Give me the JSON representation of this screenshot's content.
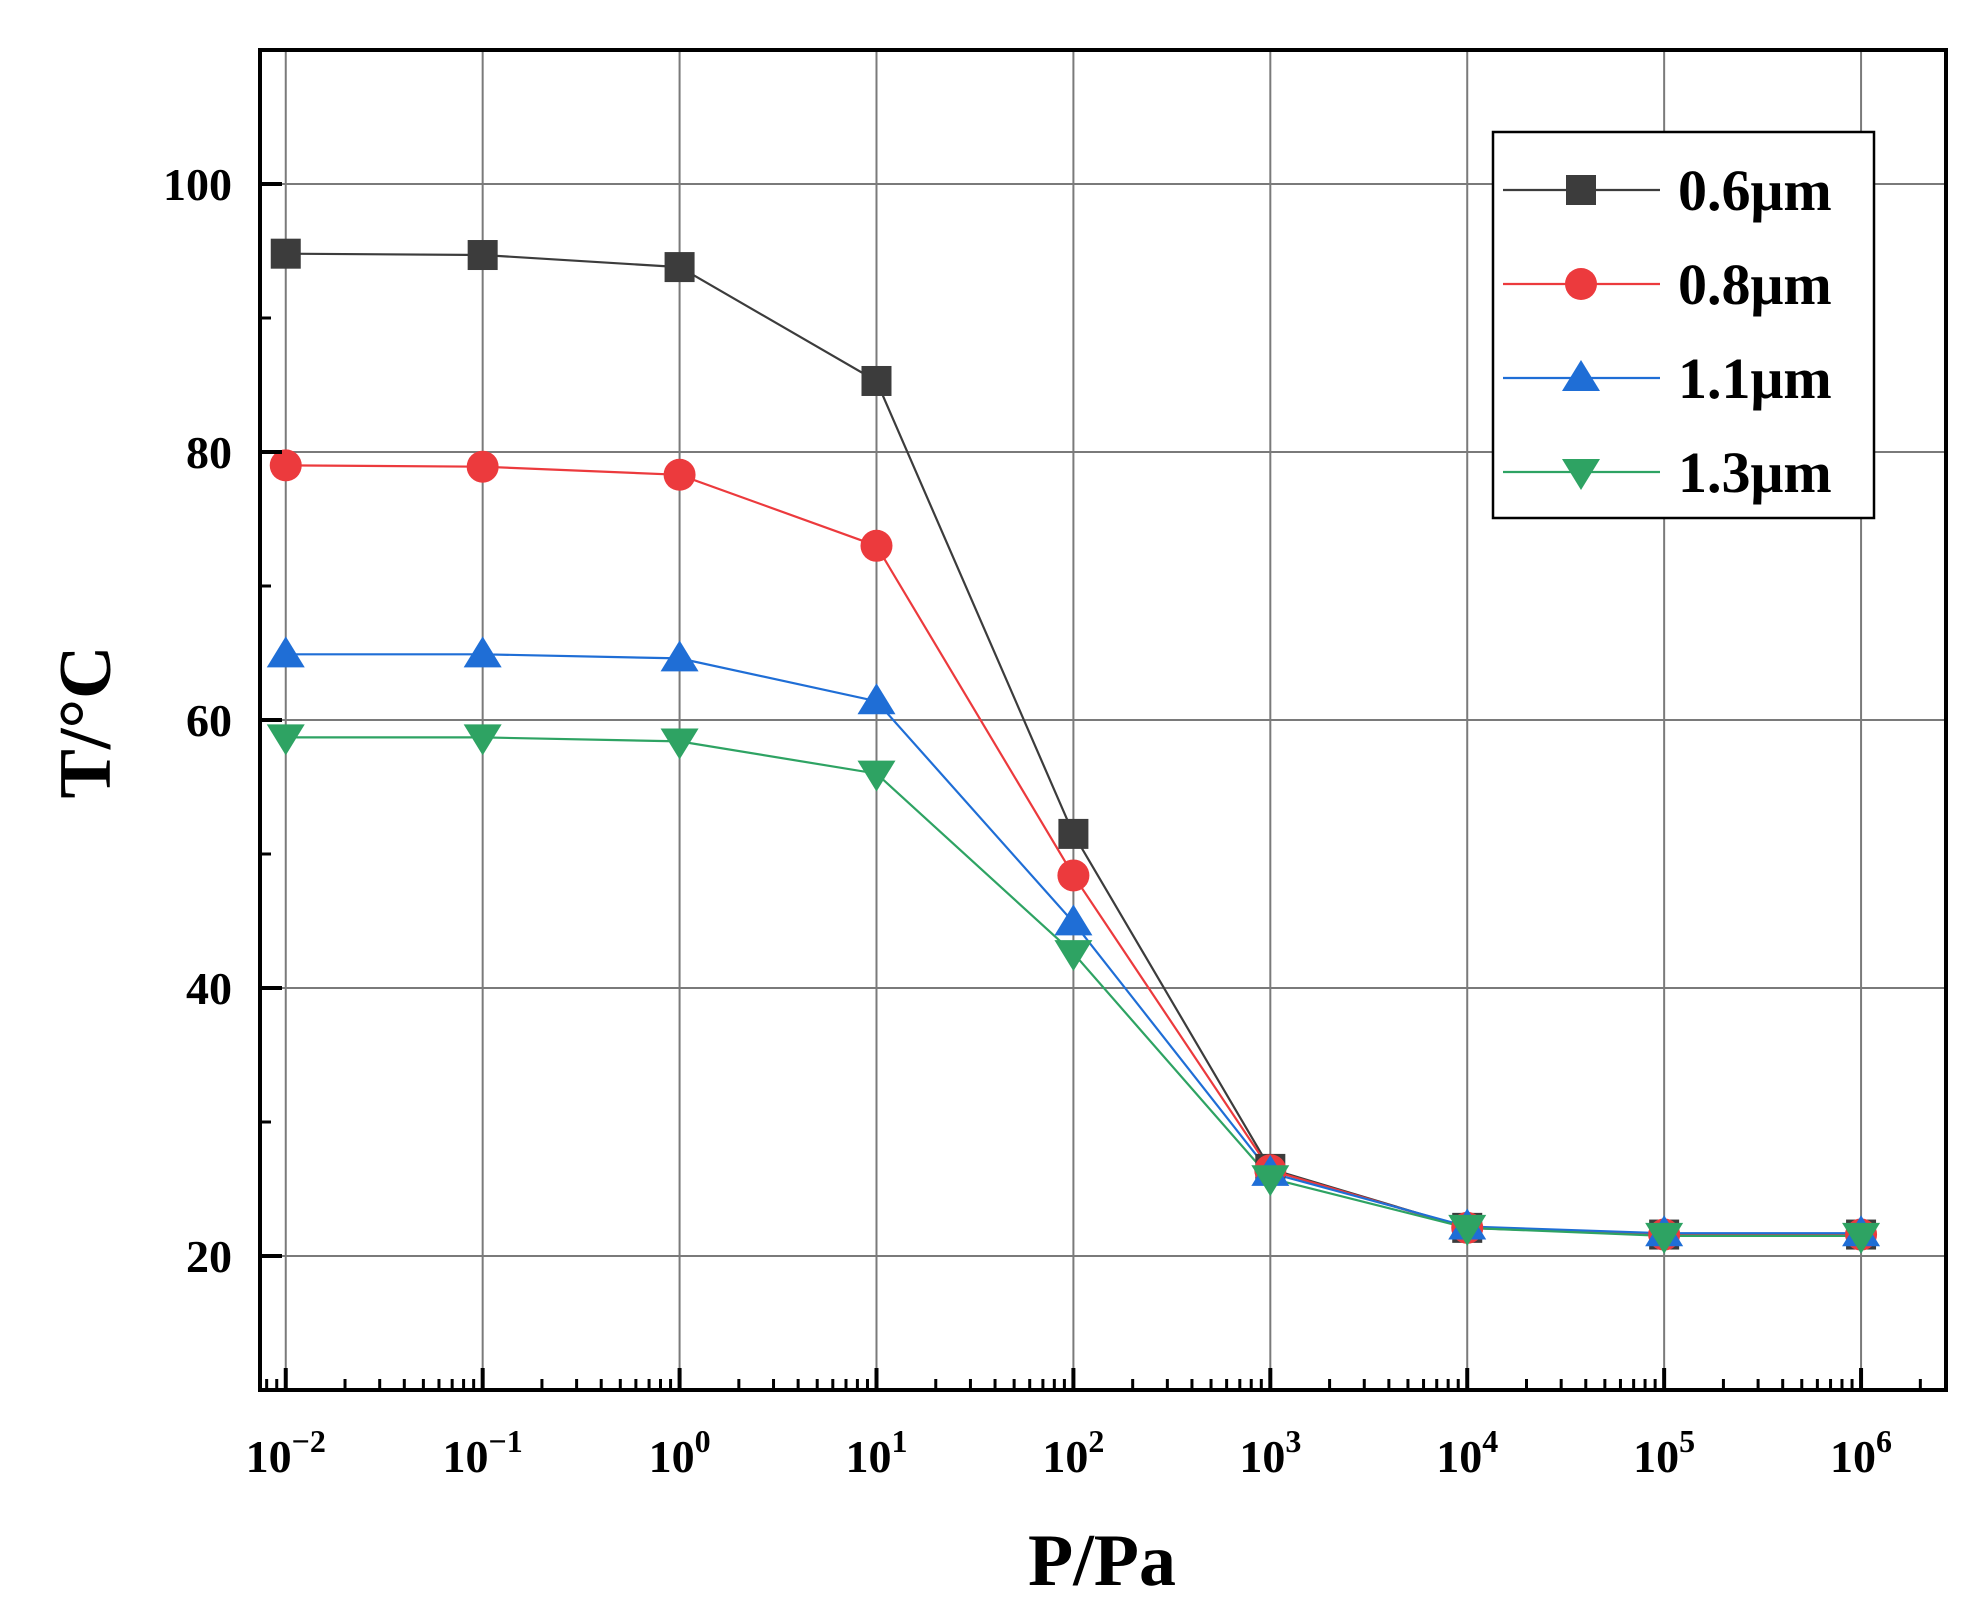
{
  "chart_data": {
    "type": "line",
    "title": "",
    "xlabel": "P/Pa",
    "ylabel": "T/°C",
    "x_scale": "log",
    "x": [
      0.01,
      0.1,
      1,
      10,
      100,
      1000,
      10000,
      100000,
      1000000
    ],
    "x_tick_labels": [
      {
        "base": "10",
        "exp": "−2"
      },
      {
        "base": "10",
        "exp": "−1"
      },
      {
        "base": "10",
        "exp": "0"
      },
      {
        "base": "10",
        "exp": "1"
      },
      {
        "base": "10",
        "exp": "2"
      },
      {
        "base": "10",
        "exp": "3"
      },
      {
        "base": "10",
        "exp": "4"
      },
      {
        "base": "10",
        "exp": "5"
      },
      {
        "base": "10",
        "exp": "6"
      }
    ],
    "xlim": [
      0.0074,
      2700000
    ],
    "ylim": [
      10,
      110
    ],
    "y_ticks": [
      20,
      40,
      60,
      80,
      100
    ],
    "y_tick_labels": [
      "20",
      "40",
      "60",
      "80",
      "100"
    ],
    "grid": true,
    "legend_position": "top-right",
    "series": [
      {
        "name": "0.6μm",
        "color": "#3c3c3c",
        "marker": "square",
        "values": [
          94.8,
          94.7,
          93.8,
          85.3,
          51.5,
          26.5,
          22.1,
          21.6,
          21.6
        ]
      },
      {
        "name": "0.8μm",
        "color": "#ec3a3d",
        "marker": "circle",
        "values": [
          79.0,
          78.9,
          78.3,
          73.0,
          48.4,
          26.4,
          22.1,
          21.6,
          21.6
        ]
      },
      {
        "name": "1.1μm",
        "color": "#1f6ed6",
        "marker": "triangle-up",
        "values": [
          64.9,
          64.9,
          64.6,
          61.4,
          44.9,
          26.2,
          22.2,
          21.7,
          21.7
        ]
      },
      {
        "name": "1.3μm",
        "color": "#2ea363",
        "marker": "triangle-down",
        "values": [
          58.7,
          58.7,
          58.4,
          56.0,
          42.6,
          25.8,
          22.1,
          21.5,
          21.5
        ]
      }
    ]
  }
}
